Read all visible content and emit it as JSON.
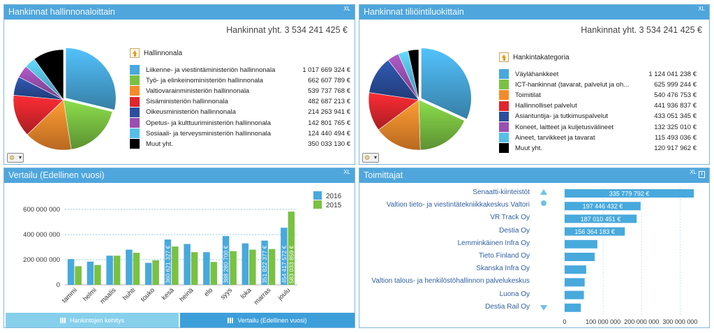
{
  "panels": {
    "hallinnonala": {
      "title": "Hankinnat hallinnonaloittain",
      "xl_label": "XL",
      "total": "Hankinnat yht. 3 534 241 425 €",
      "legend_title": "Hallinnonala",
      "items": [
        {
          "label": "Liikenne- ja viestintäministeriön hallinnonala",
          "value": "1 017 669 324  €",
          "color": "#48a9dc"
        },
        {
          "label": "Työ- ja elinkeinoministeriön hallinnonala",
          "value": "662 607 789 €",
          "color": "#7ac143"
        },
        {
          "label": "Valtiovarainministeriön hallinnonala",
          "value": "539 737 768 €",
          "color": "#f58a2c"
        },
        {
          "label": "Sisäministeriön hallinnonala",
          "value": "482 687 213 €",
          "color": "#e0262e"
        },
        {
          "label": "Oikeusministeriön hallinnonala",
          "value": "214 263 941 €",
          "color": "#2b4f9e"
        },
        {
          "label": "Opetus- ja kulttuuriministeriön hallinnonala",
          "value": "142 801 765 €",
          "color": "#9b4fb0"
        },
        {
          "label": "Sosiaali- ja terveysministeriön hallinnonala",
          "value": "124 440 494 €",
          "color": "#56bfe8"
        },
        {
          "label": "Muut yht.",
          "value": "350 033 130 €",
          "color": "#000000"
        }
      ],
      "slices": [
        1017669324,
        662607789,
        539737768,
        482687213,
        214263941,
        142801765,
        124440494,
        350033130
      ]
    },
    "tiliointiluokka": {
      "title": "Hankinnat tiliöintiluokittain",
      "xl_label": "XL",
      "total": "Hankinnat yht. 3 534 241 425 €",
      "legend_title": "Hankintakategoria",
      "items": [
        {
          "label": "Väylähankkeet",
          "value": "1 124 041 238  €",
          "color": "#48a9dc"
        },
        {
          "label": "ICT-hankinnat (tavarat, palvelut ja oh...",
          "value": "625 999 244 €",
          "color": "#7ac143"
        },
        {
          "label": "Toimitilat",
          "value": "540 476 753 €",
          "color": "#f58a2c"
        },
        {
          "label": "Hallinnolliset palvelut",
          "value": "441 936 837 €",
          "color": "#e0262e"
        },
        {
          "label": "Asiantuntija- ja tutkimuspalvelut",
          "value": "433 051 345 €",
          "color": "#2b4f9e"
        },
        {
          "label": "Koneet, laitteet ja kuljetusvälineet",
          "value": "132 325 010 €",
          "color": "#9b4fb0"
        },
        {
          "label": "Aineet, tarvikkeet ja tavarat",
          "value": "115 493 036 €",
          "color": "#56bfe8"
        },
        {
          "label": "Muut yht.",
          "value": "120 917 962 €",
          "color": "#000000"
        }
      ],
      "slices": [
        1124041238,
        625999244,
        540476753,
        441936837,
        433051345,
        132325010,
        115493036,
        120917962
      ]
    },
    "vertailu": {
      "title": "Vertailu (Edellinen vuosi)",
      "xl_label": "XL",
      "tabs": [
        {
          "label": "Hankintojen kehitys",
          "active": false
        },
        {
          "label": "Vertailu (Edellinen vuosi)",
          "active": true
        }
      ]
    },
    "toimittajat": {
      "title": "Toimittajat",
      "xl_label": "XL"
    }
  },
  "chart_data": [
    {
      "type": "bar",
      "categories": [
        "tammi",
        "helmi",
        "maalis",
        "huhti",
        "touko",
        "kesä",
        "heinä",
        "elo",
        "syys",
        "loka",
        "marras",
        "joulu"
      ],
      "series": [
        {
          "name": "2016",
          "color": "#48a9dc",
          "values": [
            205000000,
            185000000,
            232000000,
            280000000,
            175000000,
            360621327,
            325000000,
            260000000,
            388280700,
            330000000,
            351822377,
            454417572
          ]
        },
        {
          "name": "2015",
          "color": "#7ac143",
          "values": [
            148000000,
            158000000,
            232000000,
            255000000,
            195000000,
            305000000,
            260000000,
            182000000,
            268000000,
            280000000,
            285000000,
            583033859
          ]
        }
      ],
      "data_labels": [
        {
          "category": "kesä",
          "series": "2016",
          "text": "360 621 327 €"
        },
        {
          "category": "syys",
          "series": "2016",
          "text": "388 280 700 €"
        },
        {
          "category": "marras",
          "series": "2016",
          "text": "351 822 377 €"
        },
        {
          "category": "joulu",
          "series": "2016",
          "text": "454 417 572 €"
        },
        {
          "category": "joulu",
          "series": "2015",
          "text": "583 033 859 €"
        }
      ],
      "yticks": [
        "0",
        "200 000 000",
        "400 000 000",
        "600 000 000"
      ],
      "ylim": [
        0,
        650000000
      ]
    },
    {
      "type": "bar",
      "orientation": "horizontal",
      "categories": [
        "Senaatti-kiinteistöt",
        "Valtion tieto- ja viestintätekniikkakeskus Valtori",
        "VR Track Oy",
        "Destia Oy",
        "Lemminkäinen Infra Oy",
        "Tieto Finland Oy",
        "Skanska Infra Oy",
        "Valtion talous- ja henkilöstöhallinnon palvelukeskus",
        "Luona Oy",
        "Destia Rail Oy"
      ],
      "values": [
        335779792,
        197446432,
        187010451,
        156364183,
        85000000,
        78000000,
        56000000,
        52000000,
        50000000,
        42000000
      ],
      "value_labels": [
        "335 779 792 €",
        "197 446 432 €",
        "187 010 451 €",
        "156 364 183 €",
        "",
        "",
        "",
        "",
        "",
        ""
      ],
      "color": "#48a9dc",
      "xticks": [
        "0",
        "100 000 000",
        "200 000 000",
        "300 000 000"
      ],
      "xlim": [
        0,
        350000000
      ]
    }
  ]
}
